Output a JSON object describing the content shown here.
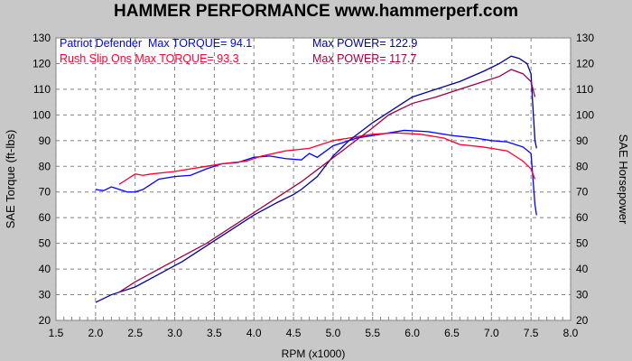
{
  "chart_data": {
    "type": "line",
    "title": "HAMMER PERFORMANCE www.hammerperf.com",
    "xlabel": "RPM (x1000)",
    "ylabel": "SAE Torque (ft-lbs)",
    "y2label": "SAE Horsepower",
    "xlim": [
      1.5,
      8.0
    ],
    "ylim": [
      20,
      130
    ],
    "xticks": [
      "1.5",
      "2.0",
      "2.5",
      "3.0",
      "3.5",
      "4.0",
      "4.5",
      "5.0",
      "5.5",
      "6.0",
      "6.5",
      "7.0",
      "7.5",
      "8.0"
    ],
    "yticks": [
      "20",
      "30",
      "40",
      "50",
      "60",
      "70",
      "80",
      "90",
      "100",
      "110",
      "120",
      "130"
    ],
    "grid": true,
    "legend": [
      {
        "run": "Patriot Defender",
        "torque_text": "Max TORQUE= 94.1",
        "power_text": "Max POWER= 122.9",
        "torque_color": "#0000ff",
        "power_color": "#0000a0"
      },
      {
        "run": "Rush Slip Ons",
        "torque_text": "Max TORQUE= 93.3",
        "power_text": "Max POWER= 117.7",
        "torque_color": "#ff0030",
        "power_color": "#a00040"
      }
    ],
    "series": [
      {
        "name": "Patriot Defender",
        "measure": "torque",
        "color": "#0000ff",
        "x": [
          2.0,
          2.1,
          2.2,
          2.4,
          2.5,
          2.6,
          2.7,
          2.8,
          3.0,
          3.2,
          3.4,
          3.6,
          3.8,
          4.0,
          4.2,
          4.4,
          4.6,
          4.7,
          4.8,
          5.0,
          5.3,
          5.6,
          5.9,
          6.2,
          6.5,
          6.8,
          7.0,
          7.2,
          7.4,
          7.5,
          7.55,
          7.57
        ],
        "y": [
          71,
          70.5,
          72,
          70,
          70,
          71,
          73,
          75,
          76,
          76.5,
          79,
          81,
          81.5,
          83.5,
          84,
          83,
          82.5,
          85,
          83.5,
          88,
          91,
          92.5,
          94,
          93.5,
          92,
          91,
          90,
          89.5,
          87.5,
          85,
          65,
          61
        ]
      },
      {
        "name": "Rush Slip Ons",
        "measure": "torque",
        "color": "#ff0030",
        "x": [
          2.3,
          2.4,
          2.5,
          2.6,
          2.7,
          3.0,
          3.3,
          3.6,
          3.9,
          4.1,
          4.4,
          4.7,
          5.0,
          5.3,
          5.5,
          5.8,
          6.1,
          6.4,
          6.6,
          6.9,
          7.2,
          7.4,
          7.5,
          7.55
        ],
        "y": [
          73,
          75,
          77,
          76.5,
          77,
          78,
          79.5,
          81,
          82,
          84,
          86,
          87,
          90,
          91.5,
          92.5,
          93,
          92.5,
          91,
          88.5,
          87.5,
          86,
          82,
          79,
          75
        ]
      },
      {
        "name": "Patriot Defender",
        "measure": "power",
        "color": "#0000a0",
        "x": [
          2.0,
          2.2,
          2.5,
          2.8,
          3.1,
          3.4,
          3.7,
          4.0,
          4.3,
          4.5,
          4.6,
          4.8,
          5.0,
          5.2,
          5.5,
          5.8,
          6.0,
          6.3,
          6.6,
          6.9,
          7.1,
          7.25,
          7.35,
          7.45,
          7.5,
          7.52,
          7.55,
          7.57
        ],
        "y": [
          27,
          30,
          33,
          38,
          43,
          49,
          55,
          61,
          66,
          69,
          71,
          76,
          84,
          90,
          97,
          103,
          107,
          110,
          113,
          117,
          120,
          122.9,
          122,
          120,
          116,
          105,
          90,
          87
        ]
      },
      {
        "name": "Rush Slip Ons",
        "measure": "power",
        "color": "#a00040",
        "x": [
          2.3,
          2.5,
          2.8,
          3.1,
          3.4,
          3.7,
          4.0,
          4.3,
          4.6,
          4.9,
          5.2,
          5.5,
          5.7,
          6.0,
          6.3,
          6.6,
          6.9,
          7.1,
          7.25,
          7.4,
          7.5,
          7.55
        ],
        "y": [
          31,
          35,
          40,
          45,
          50,
          56,
          62,
          68,
          74,
          81,
          88,
          95,
          100,
          104.5,
          107,
          110,
          113,
          115,
          117.7,
          116,
          113,
          107
        ]
      }
    ]
  }
}
